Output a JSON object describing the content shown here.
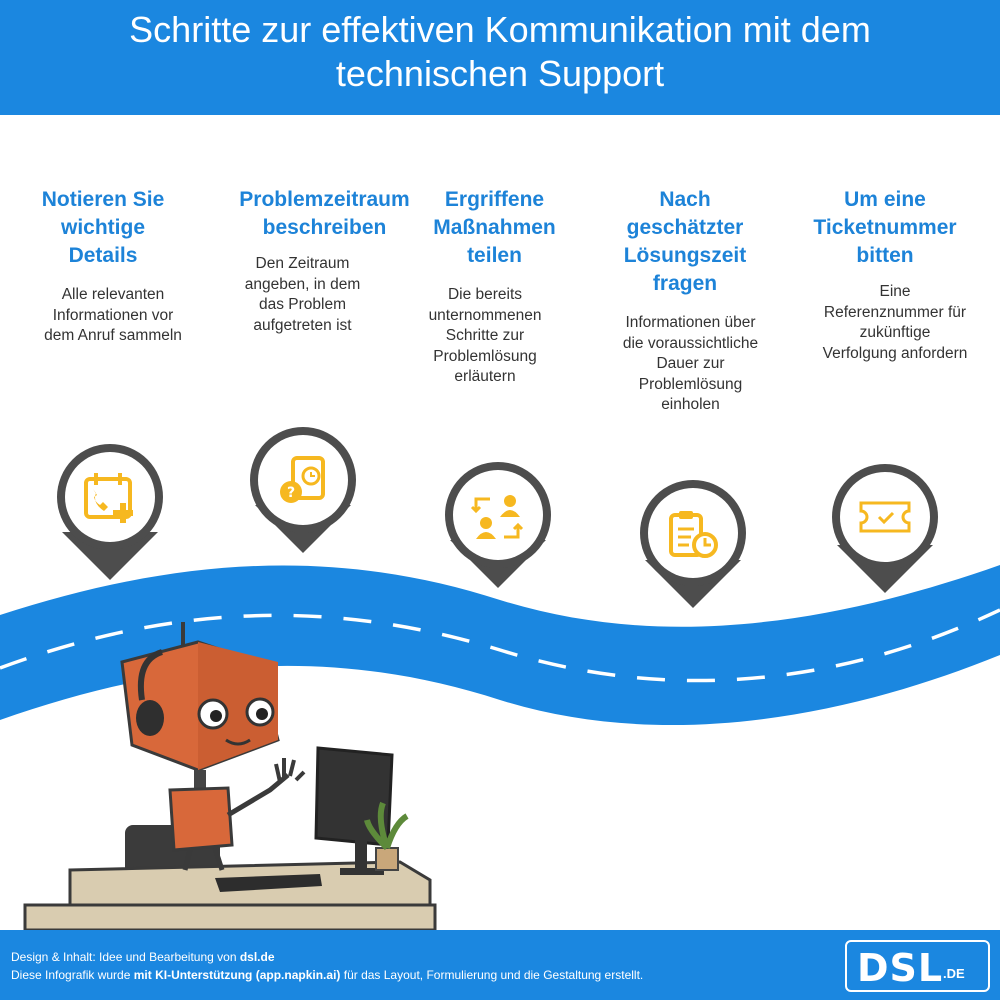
{
  "header": {
    "title_line1": "Schritte zur effektiven Kommunikation mit dem",
    "title_line2": "technischen Support"
  },
  "steps": [
    {
      "title": [
        "Notieren Sie",
        "wichtige",
        "Details"
      ],
      "desc": [
        "Alle relevanten",
        "Informationen vor",
        "dem Anruf sammeln"
      ],
      "icon": "phone-calendar-icon"
    },
    {
      "title": [
        "Problemzeitraum",
        "beschreiben"
      ],
      "desc": [
        "Den Zeitraum",
        "angeben, in dem",
        "das Problem",
        "aufgetreten ist"
      ],
      "icon": "question-document-clock-icon"
    },
    {
      "title": [
        "Ergriffene",
        "Maßnahmen",
        "teilen"
      ],
      "desc": [
        "Die bereits",
        "unternommenen",
        "Schritte zur",
        "Problemlösung",
        "erläutern"
      ],
      "icon": "people-exchange-icon"
    },
    {
      "title": [
        "Nach",
        "geschätzter",
        "Lösungszeit",
        "fragen"
      ],
      "desc": [
        "Informationen über",
        "die voraussichtliche",
        "Dauer zur",
        "Problemlösung",
        "einholen"
      ],
      "icon": "clipboard-clock-icon"
    },
    {
      "title": [
        "Um eine",
        "Ticketnummer",
        "bitten"
      ],
      "desc": [
        "Eine",
        "Referenznummer für",
        "zukünftige",
        "Verfolgung anfordern"
      ],
      "icon": "ticket-check-icon"
    }
  ],
  "footer": {
    "line1_prefix": "Design & Inhalt: Idee und Bearbeitung von ",
    "line1_bold": "dsl.de",
    "line2_prefix": "Diese Infografik wurde ",
    "line2_bold": "mit KI-Unterstützung (app.napkin.ai)",
    "line2_suffix": " für das Layout, Formulierung und die Gestaltung erstellt.",
    "logo_main": "DSL",
    "logo_suffix": ".DE"
  },
  "colors": {
    "blue": "#1b87e0",
    "title_blue": "#1d83d8",
    "icon_yellow": "#f6b820",
    "pin_dark": "#4d4d4d",
    "robot_orange": "#d8683a"
  }
}
